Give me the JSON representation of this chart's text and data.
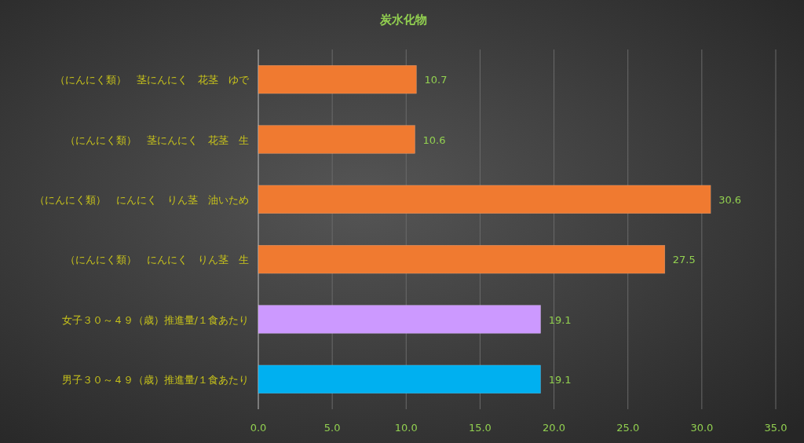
{
  "chart_data": {
    "type": "bar",
    "orientation": "horizontal",
    "title": "炭水化物",
    "categories": [
      "（にんにく類）　茎にんにく　花茎　ゆで",
      "（にんにく類）　茎にんにく　花茎　生",
      "（にんにく類）　にんにく　りん茎　油いため",
      "（にんにく類）　にんにく　りん茎　生",
      "女子３０～４９（歳）推進量/１食あたり",
      "男子３０～４９（歳）推進量/１食あたり"
    ],
    "values": [
      10.7,
      10.6,
      30.6,
      27.5,
      19.1,
      19.1
    ],
    "colors": [
      "#f07a30",
      "#f07a30",
      "#f07a30",
      "#f07a30",
      "#cc99ff",
      "#00b0f0"
    ],
    "xlim": [
      0,
      35
    ],
    "xticks": [
      {
        "value": 0,
        "label": "0.0"
      },
      {
        "value": 5,
        "label": "5.0"
      },
      {
        "value": 10,
        "label": "10.0"
      },
      {
        "value": 15,
        "label": "15.0"
      },
      {
        "value": 20,
        "label": "20.0"
      },
      {
        "value": 25,
        "label": "25.0"
      },
      {
        "value": 30,
        "label": "30.0"
      },
      {
        "value": 35,
        "label": "35.0"
      }
    ],
    "grid": "x",
    "data_labels": true
  }
}
